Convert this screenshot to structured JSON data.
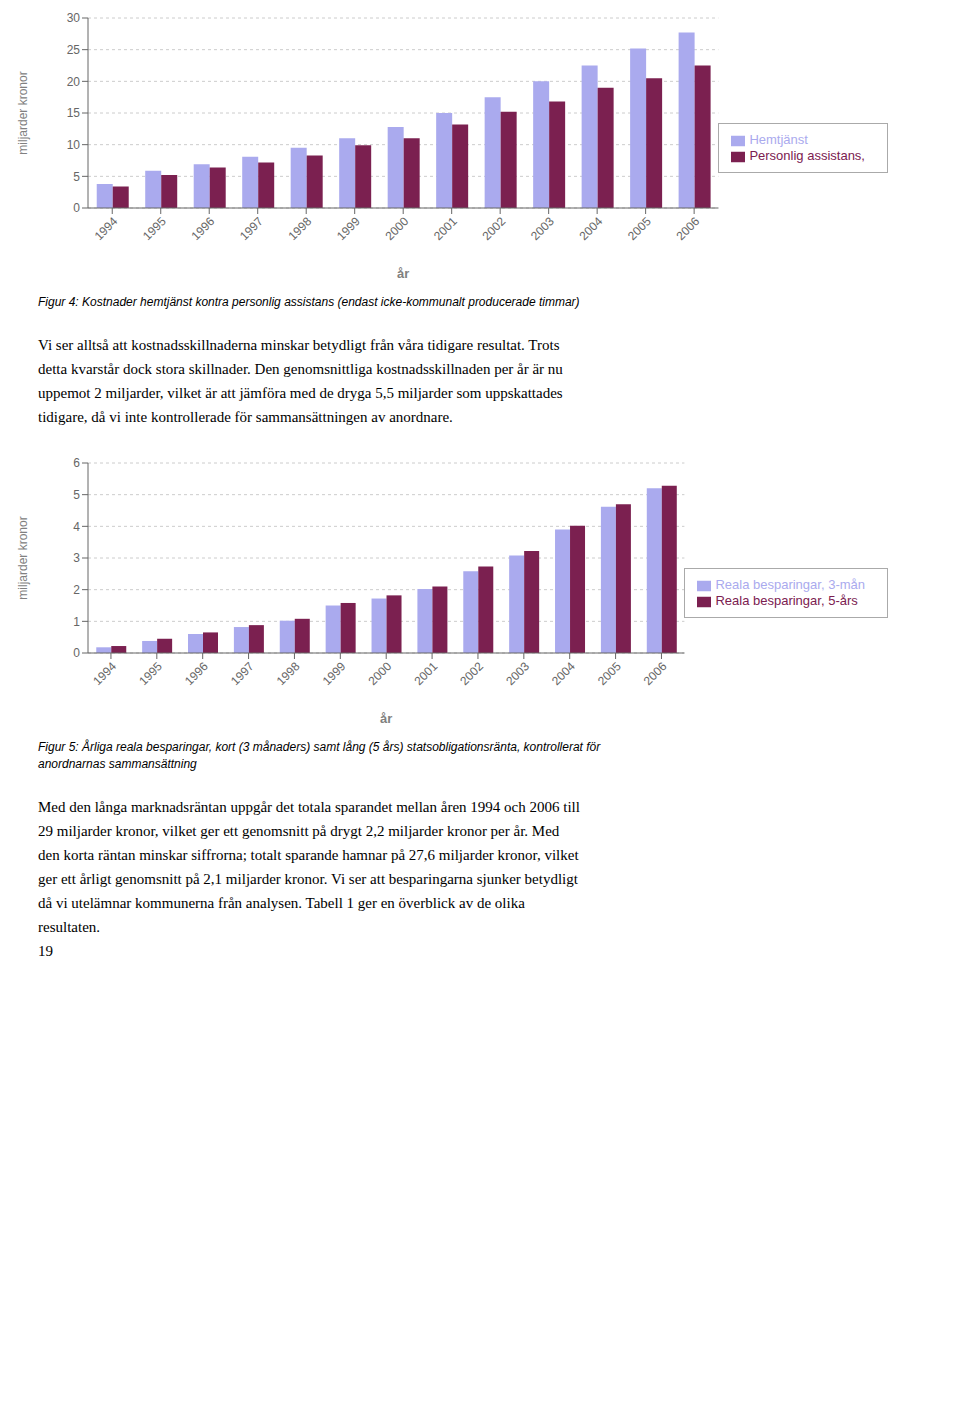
{
  "chart_data": [
    {
      "type": "bar",
      "title": "Figur 4: Kostnader hemtjänst kontra personlig assistans (endast icke-kommunalt producerade timmar)",
      "categories": [
        "1994",
        "1995",
        "1996",
        "1997",
        "1998",
        "1999",
        "2000",
        "2001",
        "2002",
        "2003",
        "2004",
        "2005",
        "2006"
      ],
      "series": [
        {
          "name": "Hemtjänst",
          "color": "#aaaaee",
          "values": [
            3.8,
            5.9,
            6.9,
            8.1,
            9.5,
            11.0,
            12.8,
            15.0,
            17.5,
            20.0,
            22.5,
            25.2,
            27.7
          ]
        },
        {
          "name": "Personlig assistans,",
          "color": "#7b2050",
          "values": [
            3.4,
            5.2,
            6.4,
            7.2,
            8.3,
            9.9,
            11.0,
            13.2,
            15.2,
            16.8,
            19.0,
            20.5,
            22.5
          ]
        }
      ],
      "xlabel": "år",
      "ylabel": "miljarder kronor",
      "ylim": [
        0,
        30
      ],
      "yticks": [
        0,
        5,
        10,
        15,
        20,
        25,
        30
      ],
      "grid": true,
      "legend": "right",
      "annotations": [
        "Vi ser alltså att kostnadsskillnaderna minskar betydligt från våra tidigare resultat. Trots",
        "detta kvarstår dock stora skillnader. Den genomsnittliga kostnadsskillnaden per år är nu",
        "uppemot 2 miljarder, vilket är att jämföra med de dryga 5,5 miljarder som uppskattades",
        "tidigare, då vi inte kontrollerade för sammansättningen av anordnare."
      ]
    },
    {
      "type": "bar",
      "title": "Figur 5: Årliga reala besparingar, kort (3 månaders) samt lång (5 års) statsobligationsränta, kontrollerat för\nanordnarnas sammansättning",
      "categories": [
        "1994",
        "1995",
        "1996",
        "1997",
        "1998",
        "1999",
        "2000",
        "2001",
        "2002",
        "2003",
        "2004",
        "2005",
        "2006"
      ],
      "series": [
        {
          "name": "Reala besparingar, 3-mån",
          "color": "#aaaaee",
          "values": [
            0.18,
            0.38,
            0.6,
            0.82,
            1.02,
            1.5,
            1.72,
            2.02,
            2.58,
            3.08,
            3.9,
            4.62,
            5.2
          ]
        },
        {
          "name": "Reala besparingar, 5-års",
          "color": "#7b2050",
          "values": [
            0.22,
            0.45,
            0.65,
            0.88,
            1.08,
            1.58,
            1.82,
            2.1,
            2.73,
            3.22,
            4.02,
            4.7,
            5.28
          ]
        }
      ],
      "xlabel": "år",
      "ylabel": "miljarder kronor",
      "ylim": [
        0,
        6
      ],
      "yticks": [
        0,
        1,
        2,
        3,
        4,
        5,
        6
      ],
      "grid": true,
      "legend": "right",
      "annotations": [
        "Med den långa marknadsräntan uppgår det totala sparandet mellan åren 1994 och 2006 till",
        "29 miljarder kronor, vilket ger ett genomsnitt på drygt 2,2 miljarder kronor per år. Med",
        "den korta räntan minskar siffrorna; totalt sparande hamnar på 27,6 miljarder kronor, vilket",
        "ger ett årligt genomsnitt på 2,1 miljarder kronor. Vi ser att besparingarna sjunker betydligt",
        "då vi utelämnar kommunerna från analysen. Tabell 1 ger en överblick av de olika",
        "resultaten.",
        "19"
      ]
    }
  ]
}
